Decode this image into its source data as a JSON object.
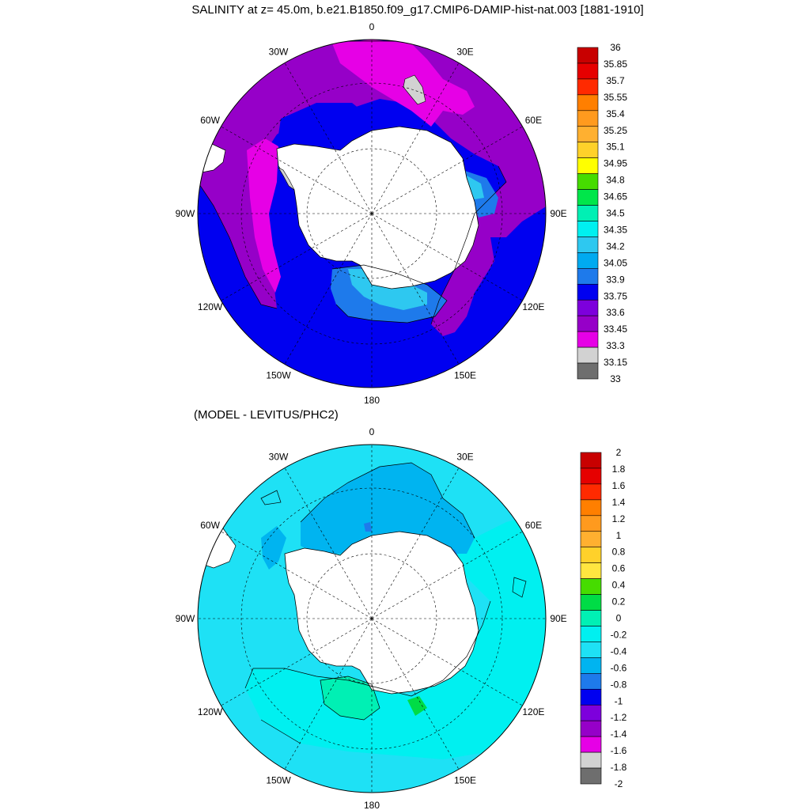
{
  "top_panel": {
    "title": "SALINITY at z=  45.0m, b.e21.B1850.f09_g17.CMIP6-DAMIP-hist-nat.003 [1881-1910]",
    "lon_labels": [
      "0",
      "30E",
      "60E",
      "90E",
      "120E",
      "150E",
      "180",
      "150W",
      "120W",
      "90W",
      "60W",
      "30W"
    ],
    "colorbar_levels": [
      "36",
      "35.85",
      "35.7",
      "35.55",
      "35.4",
      "35.25",
      "35.1",
      "34.95",
      "34.8",
      "34.65",
      "34.5",
      "34.35",
      "34.2",
      "34.05",
      "33.9",
      "33.75",
      "33.6",
      "33.45",
      "33.3",
      "33.15",
      "33"
    ],
    "colorbar_colors": [
      "#c80000",
      "#e60000",
      "#ff2a00",
      "#ff7f00",
      "#ff9a1e",
      "#ffb030",
      "#ffd12a",
      "#ffff00",
      "#46dc00",
      "#00e64a",
      "#00f0b4",
      "#00f0f0",
      "#2ec8f0",
      "#00aaf0",
      "#1e7aeb",
      "#0000f0",
      "#7d00dc",
      "#9600c8",
      "#e600e6",
      "#d2d2d2",
      "#6e6e6e"
    ]
  },
  "bottom_panel": {
    "title": "(MODEL - LEVITUS/PHC2)",
    "lon_labels": [
      "0",
      "30E",
      "60E",
      "90E",
      "120E",
      "150E",
      "180",
      "150W",
      "120W",
      "90W",
      "60W",
      "30W"
    ],
    "colorbar_levels": [
      "2",
      "1.8",
      "1.6",
      "1.4",
      "1.2",
      "1",
      "0.8",
      "0.6",
      "0.4",
      "0.2",
      "0",
      "-0.2",
      "-0.4",
      "-0.6",
      "-0.8",
      "-1",
      "-1.2",
      "-1.4",
      "-1.6",
      "-1.8",
      "-2"
    ],
    "colorbar_colors": [
      "#c80000",
      "#e60000",
      "#ff2a00",
      "#ff7f00",
      "#ff9a1e",
      "#ffb030",
      "#ffd12a",
      "#ffe640",
      "#46dc00",
      "#00dc46",
      "#00f0b4",
      "#00f0f0",
      "#1ee1f5",
      "#00b4f0",
      "#1e7aeb",
      "#0000f0",
      "#7d00dc",
      "#9600c8",
      "#e600e6",
      "#d2d2d2",
      "#6e6e6e"
    ]
  }
}
